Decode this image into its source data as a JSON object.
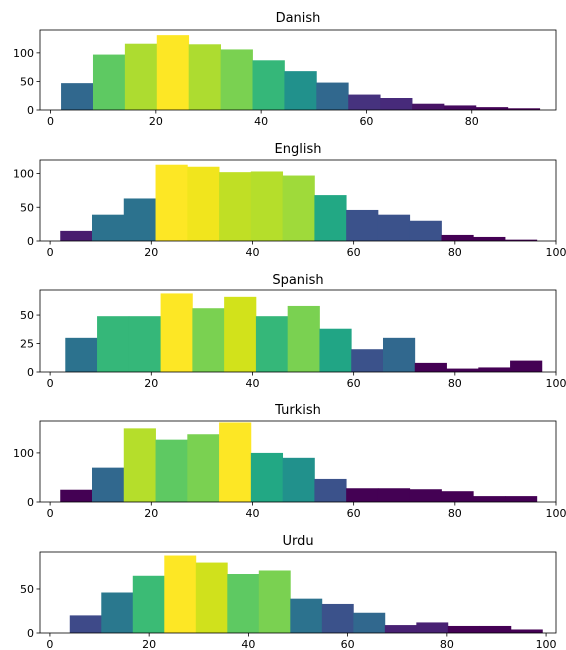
{
  "chart_data": [
    {
      "type": "bar",
      "title": "Danish",
      "xlabel": "",
      "ylabel": "",
      "xlim": [
        -2,
        96
      ],
      "ylim": [
        0,
        140
      ],
      "xticks": [
        0,
        20,
        40,
        60,
        80
      ],
      "yticks": [
        0,
        50,
        100
      ],
      "bin_width": 6.06,
      "bin_starts": [
        2,
        8.06,
        14.12,
        20.18,
        26.24,
        32.3,
        38.36,
        44.42,
        50.48,
        56.54,
        62.6,
        68.66,
        74.72,
        80.78,
        86.84
      ],
      "values": [
        47,
        97,
        116,
        131,
        115,
        106,
        87,
        68,
        48,
        27,
        21,
        11,
        8,
        5,
        3
      ],
      "colors": [
        "#31688e",
        "#5ec962",
        "#addc30",
        "#fde725",
        "#addc30",
        "#7ad151",
        "#35b779",
        "#21918c",
        "#31688e",
        "#46327e",
        "#472a7a",
        "#471365",
        "#450a5e",
        "#440356",
        "#440154"
      ]
    },
    {
      "type": "bar",
      "title": "English",
      "xlabel": "",
      "ylabel": "",
      "xlim": [
        -2,
        100
      ],
      "ylim": [
        0,
        120
      ],
      "xticks": [
        0,
        20,
        40,
        60,
        80,
        100
      ],
      "yticks": [
        0,
        50,
        100
      ],
      "bin_width": 6.28,
      "bin_starts": [
        2,
        8.28,
        14.56,
        20.84,
        27.12,
        33.4,
        39.68,
        45.96,
        52.24,
        58.52,
        64.8,
        71.08,
        77.36,
        83.64,
        89.92
      ],
      "values": [
        15,
        39,
        63,
        113,
        110,
        102,
        103,
        97,
        68,
        46,
        39,
        30,
        9,
        6,
        2
      ],
      "colors": [
        "#481c6e",
        "#2c728e",
        "#2c728e",
        "#fde725",
        "#f1e51d",
        "#c0df25",
        "#b5de2b",
        "#9fda3a",
        "#22a884",
        "#3b528b",
        "#3b528b",
        "#3b528b",
        "#440154",
        "#440154",
        "#440154"
      ]
    },
    {
      "type": "bar",
      "title": "Spanish",
      "xlabel": "",
      "ylabel": "",
      "xlim": [
        -2,
        100
      ],
      "ylim": [
        0,
        72
      ],
      "xticks": [
        0,
        20,
        40,
        60,
        80,
        100
      ],
      "yticks": [
        0,
        25,
        50
      ],
      "bin_width": 6.28,
      "bin_starts": [
        3,
        9.28,
        15.56,
        21.84,
        28.12,
        34.4,
        40.68,
        46.96,
        53.24,
        59.52,
        65.8,
        72.08,
        78.36,
        84.64,
        90.92
      ],
      "values": [
        30,
        49,
        49,
        69,
        56,
        66,
        49,
        58,
        38,
        20,
        30,
        8,
        3,
        4,
        10
      ],
      "colors": [
        "#2c728e",
        "#35b779",
        "#35b779",
        "#fde725",
        "#7ad151",
        "#d2e21b",
        "#35b779",
        "#7ad151",
        "#21a585",
        "#3b528b",
        "#31688e",
        "#440154",
        "#440154",
        "#440154",
        "#440154"
      ]
    },
    {
      "type": "bar",
      "title": "Turkish",
      "xlabel": "",
      "ylabel": "",
      "xlim": [
        -2,
        100
      ],
      "ylim": [
        0,
        165
      ],
      "xticks": [
        0,
        20,
        40,
        60,
        80,
        100
      ],
      "yticks": [
        0,
        100
      ],
      "bin_width": 6.28,
      "bin_starts": [
        2,
        8.28,
        14.56,
        20.84,
        27.12,
        33.4,
        39.68,
        45.96,
        52.24,
        58.52,
        64.8,
        71.08,
        77.36,
        83.64,
        89.92
      ],
      "values": [
        25,
        70,
        150,
        127,
        138,
        162,
        100,
        90,
        47,
        28,
        28,
        26,
        22,
        12,
        12
      ],
      "colors": [
        "#440154",
        "#31688e",
        "#b5de2b",
        "#5ec962",
        "#7ad151",
        "#fde725",
        "#22a884",
        "#21918c",
        "#3b528b",
        "#440154",
        "#440154",
        "#440154",
        "#440154",
        "#440154",
        "#440154"
      ]
    },
    {
      "type": "bar",
      "title": "Urdu",
      "xlabel": "",
      "ylabel": "",
      "xlim": [
        -2,
        102
      ],
      "ylim": [
        0,
        92
      ],
      "xticks": [
        0,
        20,
        40,
        60,
        80,
        100
      ],
      "yticks": [
        0,
        50
      ],
      "bin_width": 6.35,
      "bin_starts": [
        4,
        10.35,
        16.7,
        23.05,
        29.4,
        35.75,
        42.1,
        48.45,
        54.8,
        61.15,
        67.5,
        73.85,
        80.2,
        86.55,
        92.9
      ],
      "values": [
        20,
        46,
        65,
        88,
        80,
        67,
        71,
        39,
        33,
        23,
        9,
        12,
        8,
        8,
        4
      ],
      "colors": [
        "#3e4a89",
        "#2a788e",
        "#3bbb75",
        "#fde725",
        "#d0e11c",
        "#5ec962",
        "#7ad151",
        "#2c728e",
        "#3b528b",
        "#31688e",
        "#482173",
        "#482173",
        "#440154",
        "#440154",
        "#440154"
      ]
    }
  ]
}
